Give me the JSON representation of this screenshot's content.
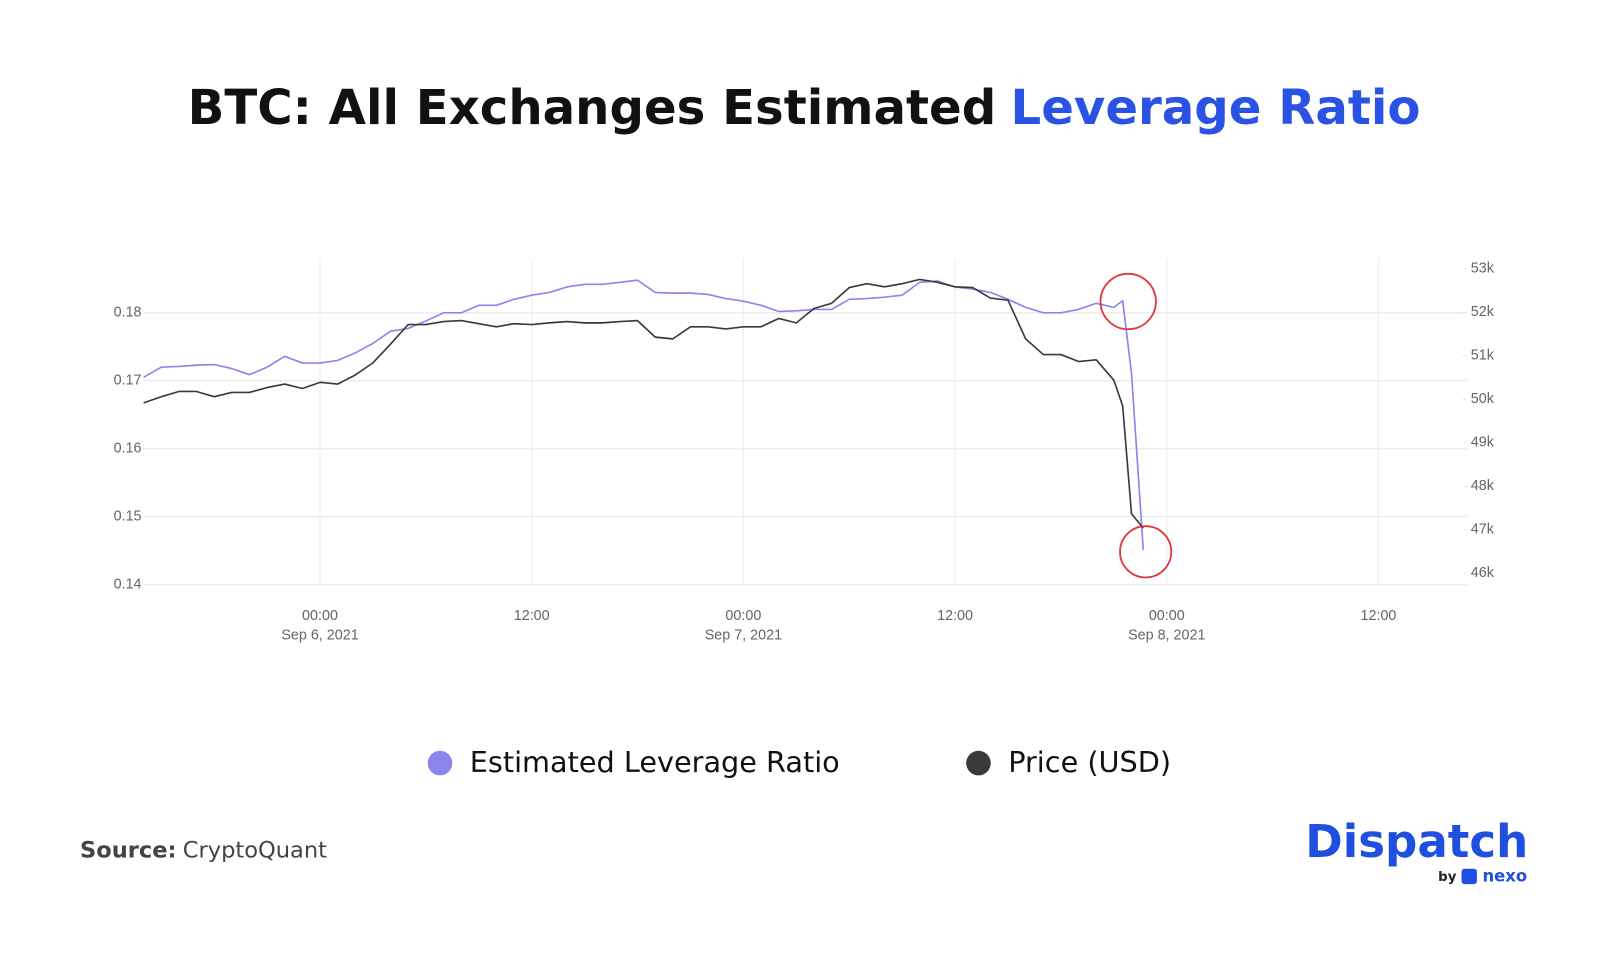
{
  "chart_data": {
    "type": "line",
    "title": [
      "BTC: All Exchanges Estimated",
      "Leverage Ratio"
    ],
    "x": [
      "2021-09-05 14:00",
      "2021-09-05 15:00",
      "2021-09-05 16:00",
      "2021-09-05 17:00",
      "2021-09-05 18:00",
      "2021-09-05 19:00",
      "2021-09-05 20:00",
      "2021-09-05 21:00",
      "2021-09-05 22:00",
      "2021-09-05 23:00",
      "2021-09-06 00:00",
      "2021-09-06 01:00",
      "2021-09-06 02:00",
      "2021-09-06 03:00",
      "2021-09-06 04:00",
      "2021-09-06 05:00",
      "2021-09-06 06:00",
      "2021-09-06 07:00",
      "2021-09-06 08:00",
      "2021-09-06 09:00",
      "2021-09-06 10:00",
      "2021-09-06 11:00",
      "2021-09-06 12:00",
      "2021-09-06 13:00",
      "2021-09-06 14:00",
      "2021-09-06 15:00",
      "2021-09-06 16:00",
      "2021-09-06 17:00",
      "2021-09-06 18:00",
      "2021-09-06 19:00",
      "2021-09-06 20:00",
      "2021-09-06 21:00",
      "2021-09-06 22:00",
      "2021-09-06 23:00",
      "2021-09-07 00:00",
      "2021-09-07 01:00",
      "2021-09-07 02:00",
      "2021-09-07 03:00",
      "2021-09-07 04:00",
      "2021-09-07 05:00",
      "2021-09-07 06:00",
      "2021-09-07 07:00",
      "2021-09-07 08:00",
      "2021-09-07 09:00",
      "2021-09-07 10:00",
      "2021-09-07 11:00",
      "2021-09-07 12:00",
      "2021-09-07 13:00",
      "2021-09-07 14:00",
      "2021-09-07 15:00",
      "2021-09-07 16:00",
      "2021-09-07 17:00",
      "2021-09-07 18:00",
      "2021-09-07 19:00",
      "2021-09-07 20:00",
      "2021-09-07 21:00",
      "2021-09-07 21:30",
      "2021-09-07 22:00",
      "2021-09-07 22:40"
    ],
    "series": [
      {
        "name": "Estimated Leverage Ratio",
        "color": "#8b85ec",
        "axis": "y",
        "values": [
          0.1705,
          0.172,
          0.1721,
          0.1723,
          0.1724,
          0.1718,
          0.1709,
          0.172,
          0.1736,
          0.1726,
          0.1726,
          0.173,
          0.1741,
          0.1755,
          0.1773,
          0.1777,
          0.1788,
          0.18,
          0.18,
          0.1811,
          0.1811,
          0.182,
          0.1826,
          0.183,
          0.1838,
          0.1842,
          0.1842,
          0.1845,
          0.1848,
          0.183,
          0.1829,
          0.1829,
          0.1827,
          0.1821,
          0.1817,
          0.1811,
          0.1802,
          0.1803,
          0.1805,
          0.1805,
          0.182,
          0.1821,
          0.1823,
          0.1826,
          0.1845,
          0.1847,
          0.1838,
          0.1835,
          0.183,
          0.182,
          0.1808,
          0.18,
          0.18,
          0.1805,
          0.1814,
          0.1808,
          0.1818,
          0.1711,
          0.1451
        ]
      },
      {
        "name": "Price (USD)",
        "color": "#3a3a3a",
        "axis": "y2",
        "values": [
          49920,
          50060,
          50180,
          50180,
          50060,
          50160,
          50160,
          50270,
          50350,
          50250,
          50390,
          50350,
          50560,
          50840,
          51270,
          51720,
          51720,
          51790,
          51810,
          51740,
          51670,
          51740,
          51720,
          51760,
          51790,
          51760,
          51760,
          51790,
          51810,
          51430,
          51390,
          51670,
          51670,
          51620,
          51670,
          51670,
          51860,
          51760,
          52090,
          52210,
          52570,
          52660,
          52590,
          52660,
          52760,
          52690,
          52590,
          52570,
          52330,
          52280,
          51390,
          51030,
          51030,
          50870,
          50910,
          50440,
          49850,
          47370,
          47040
        ]
      }
    ],
    "xlim": [
      "2021-09-05 14:00",
      "2021-09-08 17:00"
    ],
    "xticks": [
      {
        "value": "2021-09-06 00:00",
        "label": [
          "00:00",
          "Sep 6, 2021"
        ]
      },
      {
        "value": "2021-09-06 12:00",
        "label": "12:00"
      },
      {
        "value": "2021-09-07 00:00",
        "label": [
          "00:00",
          "Sep 7, 2021"
        ]
      },
      {
        "value": "2021-09-07 12:00",
        "label": "12:00"
      },
      {
        "value": "2021-09-08 00:00",
        "label": [
          "00:00",
          "Sep 8, 2021"
        ]
      },
      {
        "value": "2021-09-08 12:00",
        "label": "12:00"
      }
    ],
    "ylim": [
      0.14,
      0.188
    ],
    "yticks": [
      0.14,
      0.15,
      0.16,
      0.17,
      0.18
    ],
    "y2lim": [
      45740,
      53240
    ],
    "y2ticks": [
      {
        "value": 46000,
        "label": "46k"
      },
      {
        "value": 47000,
        "label": "47k"
      },
      {
        "value": 48000,
        "label": "48k"
      },
      {
        "value": 49000,
        "label": "49k"
      },
      {
        "value": 50000,
        "label": "50k"
      },
      {
        "value": 51000,
        "label": "51k"
      },
      {
        "value": 52000,
        "label": "52k"
      },
      {
        "value": 53000,
        "label": "53k"
      }
    ],
    "grid": true,
    "title_highlight_color": "#2a52e3",
    "source": {
      "label": "Source:",
      "text": "CryptoQuant"
    },
    "brand": {
      "name": "Dispatch",
      "by": "by",
      "partner": "nexo"
    }
  }
}
